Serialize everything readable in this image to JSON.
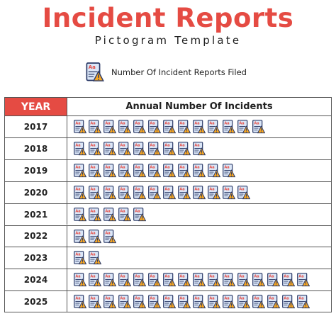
{
  "header": {
    "title": "Incident Reports",
    "subtitle": "Pictogram Template"
  },
  "legend": {
    "icon": "incident-report-document-warning-icon",
    "text": "Number Of Incident Reports Filed"
  },
  "colors": {
    "accent": "#e54b43",
    "icon_paper": "#dbe6f7",
    "icon_warning": "#f6a623"
  },
  "chart_data": {
    "type": "pictogram",
    "title": "Incident Reports",
    "subtitle": "Pictogram Template",
    "column_headers": [
      "YEAR",
      "Annual Number Of Incidents"
    ],
    "categories": [
      "2017",
      "2018",
      "2019",
      "2020",
      "2021",
      "2022",
      "2023",
      "2024",
      "2025"
    ],
    "values": [
      13,
      9,
      11,
      12,
      5,
      3,
      2,
      16,
      16
    ],
    "legend": {
      "entries": [
        "Number Of Incident Reports Filed"
      ],
      "position": "top"
    }
  }
}
